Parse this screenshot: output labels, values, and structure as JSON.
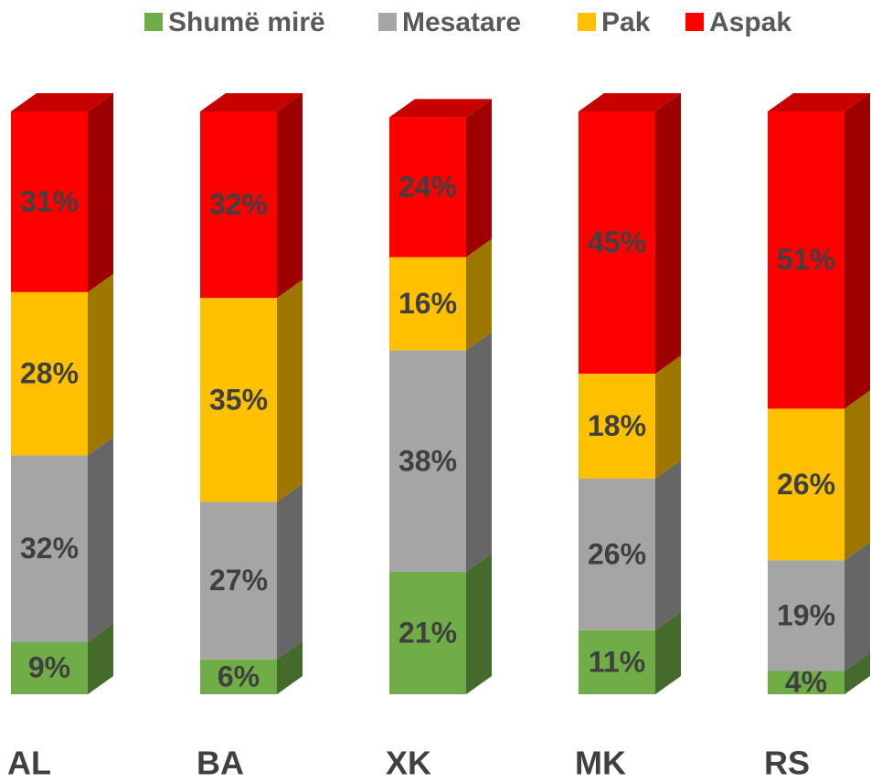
{
  "chart_data": {
    "type": "bar3d_stacked",
    "categories": [
      "AL",
      "BA",
      "XK",
      "MK",
      "RS"
    ],
    "series": [
      {
        "name": "Shumë mirë",
        "color": "#70ad47",
        "values": [
          9,
          6,
          21,
          11,
          4
        ],
        "value_labels": [
          "9%",
          "6%",
          "21%",
          "11%",
          "4%"
        ]
      },
      {
        "name": "Mesatare",
        "color": "#a5a5a5",
        "values": [
          32,
          27,
          38,
          26,
          19
        ],
        "value_labels": [
          "32%",
          "27%",
          "38%",
          "26%",
          "19%"
        ]
      },
      {
        "name": "Pak",
        "color": "#ffc000",
        "values": [
          28,
          35,
          16,
          18,
          26
        ],
        "value_labels": [
          "28%",
          "35%",
          "16%",
          "18%",
          "26%"
        ]
      },
      {
        "name": "Aspak",
        "color": "#ff0000",
        "values": [
          31,
          32,
          24,
          45,
          51
        ],
        "value_labels": [
          "31%",
          "32%",
          "24%",
          "45%",
          "51%"
        ]
      }
    ],
    "legend": "top"
  }
}
